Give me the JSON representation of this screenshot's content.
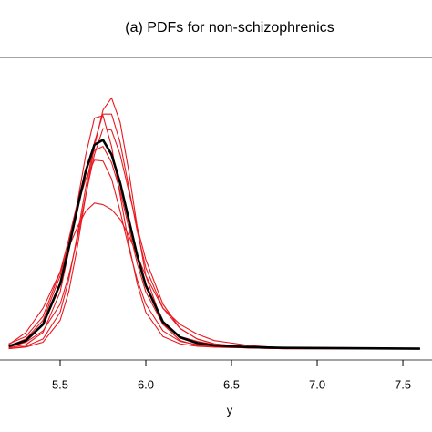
{
  "chart_data": {
    "type": "line",
    "title": "(a) PDFs for non-schizophrenics",
    "x_label": "y",
    "x": [
      5.2,
      5.3,
      5.4,
      5.5,
      5.55,
      5.6,
      5.65,
      5.7,
      5.75,
      5.8,
      5.85,
      5.9,
      5.95,
      6.0,
      6.1,
      6.2,
      6.3,
      6.4,
      6.6,
      6.8,
      7.6
    ],
    "series": [
      {
        "color": "#e8191f",
        "values": [
          0,
          0.02,
          0.08,
          0.35,
          0.7,
          1.25,
          1.9,
          2.5,
          2.95,
          3.1,
          2.8,
          2.2,
          1.5,
          0.9,
          0.3,
          0.1,
          0.04,
          0.02,
          0.01,
          0,
          0
        ]
      },
      {
        "color": "#e8191f",
        "values": [
          0.05,
          0.2,
          0.5,
          0.95,
          1.25,
          1.5,
          1.7,
          1.8,
          1.78,
          1.72,
          1.6,
          1.4,
          1.15,
          0.9,
          0.5,
          0.25,
          0.12,
          0.06,
          0.02,
          0.01,
          0
        ]
      },
      {
        "color": "#e8191f",
        "values": [
          0.01,
          0.05,
          0.2,
          0.7,
          1.2,
          1.8,
          2.4,
          2.85,
          2.88,
          2.5,
          1.9,
          1.3,
          0.8,
          0.45,
          0.15,
          0.06,
          0.03,
          0.02,
          0.01,
          0,
          0
        ]
      },
      {
        "color": "#e8191f",
        "values": [
          0.02,
          0.08,
          0.22,
          0.55,
          0.9,
          1.35,
          1.9,
          2.4,
          2.72,
          2.7,
          2.4,
          1.95,
          1.5,
          1.1,
          0.55,
          0.25,
          0.12,
          0.06,
          0.02,
          0.01,
          0
        ]
      },
      {
        "color": "#e8191f",
        "values": [
          0.06,
          0.15,
          0.4,
          0.95,
          1.35,
          1.8,
          2.2,
          2.45,
          2.5,
          2.3,
          1.95,
          1.5,
          1.05,
          0.7,
          0.3,
          0.15,
          0.09,
          0.05,
          0.02,
          0.01,
          0
        ]
      },
      {
        "color": "#e8191f",
        "values": [
          0,
          0.03,
          0.12,
          0.45,
          0.85,
          1.4,
          2.0,
          2.55,
          2.9,
          2.9,
          2.55,
          2.0,
          1.45,
          1.0,
          0.5,
          0.3,
          0.18,
          0.1,
          0.04,
          0.01,
          0
        ]
      },
      {
        "color": "#e8191f",
        "values": [
          0.03,
          0.12,
          0.35,
          0.9,
          1.3,
          1.75,
          2.1,
          2.33,
          2.32,
          2.1,
          1.7,
          1.25,
          0.85,
          0.55,
          0.22,
          0.09,
          0.05,
          0.03,
          0.01,
          0,
          0
        ]
      },
      {
        "color": "#000000",
        "width": 2.6,
        "values": [
          0.03,
          0.1,
          0.3,
          0.8,
          1.24,
          1.73,
          2.2,
          2.52,
          2.58,
          2.4,
          2.05,
          1.6,
          1.15,
          0.78,
          0.33,
          0.14,
          0.07,
          0.04,
          0.02,
          0.01,
          0
        ]
      }
    ],
    "xlim": [
      5.149,
      7.67
    ],
    "ylim": [
      -0.14,
      3.6
    ],
    "xticks": [
      5.5,
      {
        "value": 6,
        "label": "6.0"
      },
      6.5,
      {
        "value": 7,
        "label": "7.0"
      },
      7.5
    ]
  }
}
